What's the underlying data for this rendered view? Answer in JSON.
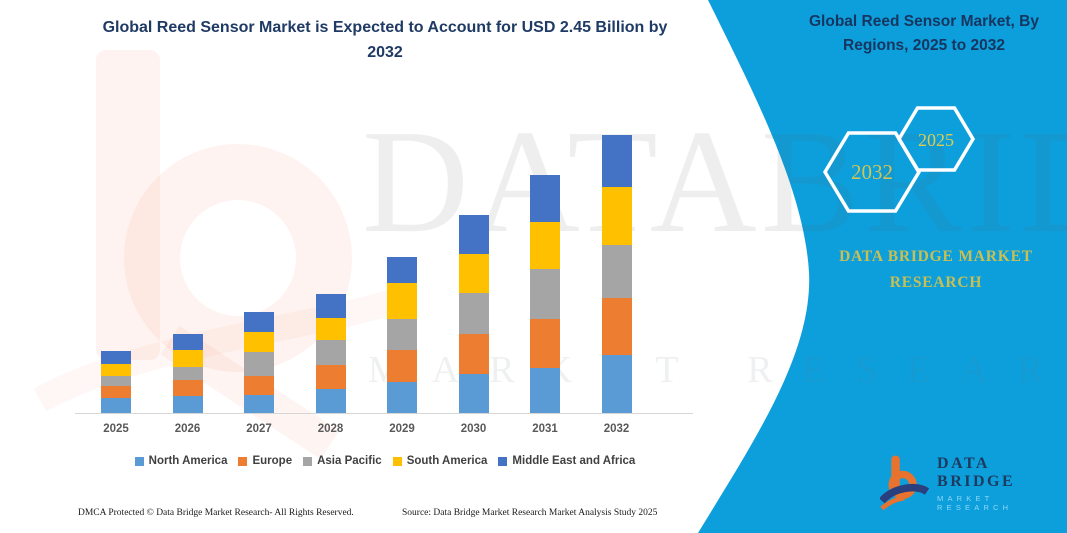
{
  "title": {
    "line1": "Global Reed Sensor Market is Expected to Account for USD 2.45 Billion by",
    "line2": "2032"
  },
  "panel": {
    "bg_color": "#0C9FDC",
    "title_line1": "Global Reed Sensor Market, By",
    "title_line2": "Regions, 2025 to 2032",
    "hex_left_year": "2032",
    "hex_right_year": "2025",
    "accent_text_color": "#CFC554",
    "brand_line1": "DATA BRIDGE MARKET",
    "brand_line2": "RESEARCH"
  },
  "watermark": {
    "text_main": "DATABRIDGE",
    "text_sub": "MARKET RESEARCH"
  },
  "logo": {
    "name": "DATA BRIDGE",
    "subtitle": "MARKET RESEARCH"
  },
  "footer": {
    "left": "DMCA Protected © Data Bridge Market Research-  All Rights Reserved.",
    "right": "Source: Data Bridge Market Research  Market Analysis Study 2025"
  },
  "chart_data": {
    "type": "bar",
    "stacked": true,
    "title": "Global Reed Sensor Market is Expected to Account for USD 2.45 Billion by 2032",
    "value_unit": "USD Billion",
    "total_2032": 2.45,
    "categories": [
      "2025",
      "2026",
      "2027",
      "2028",
      "2029",
      "2030",
      "2031",
      "2032"
    ],
    "series": [
      {
        "name": "North America",
        "color": "#5B9BD5",
        "values": [
          0.13,
          0.15,
          0.16,
          0.21,
          0.27,
          0.34,
          0.4,
          0.51
        ]
      },
      {
        "name": "Europe",
        "color": "#ED7D31",
        "values": [
          0.11,
          0.14,
          0.17,
          0.21,
          0.29,
          0.36,
          0.43,
          0.5
        ]
      },
      {
        "name": "Asia Pacific",
        "color": "#A5A5A5",
        "values": [
          0.09,
          0.12,
          0.21,
          0.22,
          0.27,
          0.36,
          0.44,
          0.47
        ]
      },
      {
        "name": "South America",
        "color": "#FFC000",
        "values": [
          0.1,
          0.15,
          0.17,
          0.2,
          0.32,
          0.34,
          0.41,
          0.51
        ]
      },
      {
        "name": "Middle East and Africa",
        "color": "#4472C4",
        "values": [
          0.12,
          0.14,
          0.18,
          0.21,
          0.23,
          0.34,
          0.42,
          0.46
        ]
      }
    ],
    "totals": [
      0.55,
      0.7,
      0.89,
      1.05,
      1.38,
      1.74,
      2.1,
      2.45
    ],
    "ylim": [
      0,
      2.6
    ],
    "grid": false,
    "legend_position": "bottom"
  }
}
